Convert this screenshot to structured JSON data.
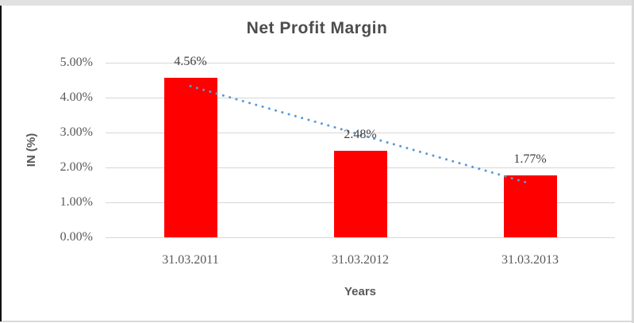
{
  "chart_data": {
    "type": "bar",
    "title": "Net Profit Margin",
    "xlabel": "Years",
    "ylabel": "IN (%)",
    "categories": [
      "31.03.2011",
      "31.03.2012",
      "31.03.2013"
    ],
    "values": [
      4.56,
      2.48,
      1.77
    ],
    "data_labels": [
      "4.56%",
      "2.48%",
      "1.77%"
    ],
    "yticks": [
      {
        "label": "5.00%",
        "value": 5
      },
      {
        "label": "4.00%",
        "value": 4
      },
      {
        "label": "3.00%",
        "value": 3
      },
      {
        "label": "2.00%",
        "value": 2
      },
      {
        "label": "1.00%",
        "value": 1
      },
      {
        "label": "0.00%",
        "value": 0
      }
    ],
    "ylim": [
      0,
      5
    ],
    "grid": true,
    "legend": "none",
    "bar_color": "#FF0000",
    "trendline": {
      "type": "linear",
      "style": "dotted",
      "color": "#5B9BD5",
      "fitted_values": [
        4.33,
        2.94,
        1.54
      ]
    }
  },
  "colors": {
    "title_text": "#4d4d4d",
    "axis_text": "#595959",
    "data_label_text": "#404040",
    "gridline": "#d6d6d6",
    "frame_top_strip": "#e1e1e1",
    "frame_left_line": "#111111",
    "frame_side_line": "#d9d9d9"
  }
}
